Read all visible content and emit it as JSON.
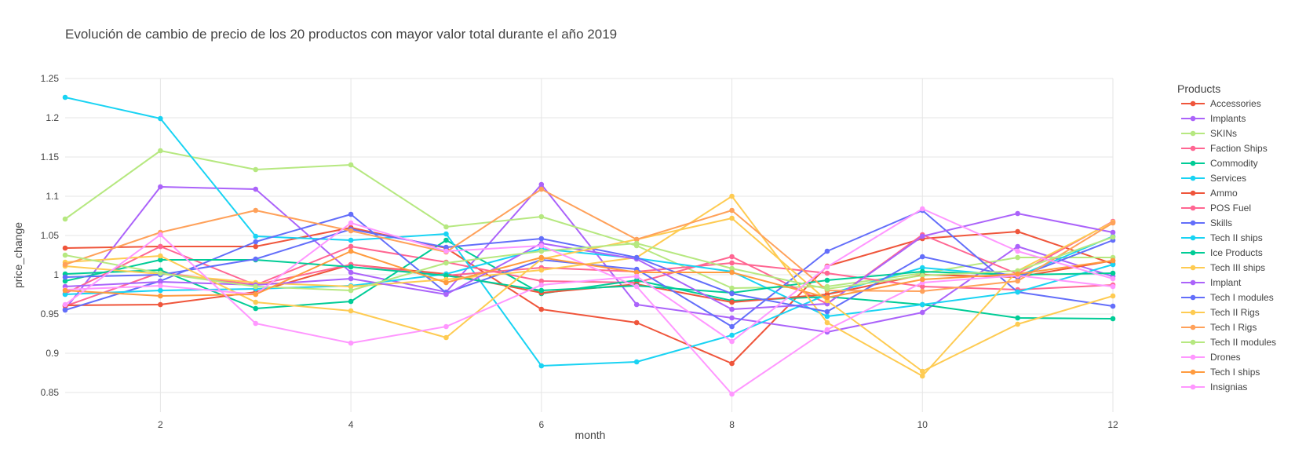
{
  "chart_data": {
    "type": "line",
    "title": "Evolución de cambio de precio de los 20 productos con mayor valor total durante el año 2019",
    "xlabel": "month",
    "ylabel": "price_change",
    "legend_title": "Products",
    "legend_position": "right",
    "grid": true,
    "xlim": [
      1,
      12
    ],
    "ylim": [
      0.825,
      1.25
    ],
    "x_ticks": [
      "2",
      "4",
      "6",
      "8",
      "10",
      "12"
    ],
    "x_tick_values": [
      2,
      4,
      6,
      8,
      10,
      12
    ],
    "y_ticks": [
      "0.85",
      "0.9",
      "0.95",
      "1",
      "1.05",
      "1.1",
      "1.15",
      "1.2",
      "1.25"
    ],
    "y_tick_values": [
      0.85,
      0.9,
      0.95,
      1.0,
      1.05,
      1.1,
      1.15,
      1.2,
      1.25
    ],
    "x": [
      1,
      2,
      3,
      4,
      5,
      6,
      7,
      8,
      9,
      10,
      11,
      12
    ],
    "series": [
      {
        "name": "Accessories",
        "color": "#EF553B",
        "values": [
          1.034,
          1.036,
          1.036,
          1.06,
          1.034,
          0.956,
          0.939,
          0.887,
          1.011,
          1.046,
          1.055,
          1.014
        ]
      },
      {
        "name": "Implants",
        "color": "#AB63FA",
        "values": [
          0.956,
          1.112,
          1.109,
          1.003,
          0.978,
          1.115,
          0.962,
          0.945,
          0.927,
          0.952,
          1.036,
          0.998
        ]
      },
      {
        "name": "SKINs",
        "color": "#B6E880",
        "values": [
          1.071,
          1.158,
          1.134,
          1.14,
          1.061,
          1.074,
          1.037,
          0.983,
          0.985,
          1.002,
          1.022,
          1.022
        ]
      },
      {
        "name": "Faction Ships",
        "color": "#FF6692",
        "values": [
          0.96,
          1.003,
          0.987,
          1.036,
          1.016,
          0.992,
          0.99,
          1.023,
          0.963,
          1.051,
          1.001,
          1.068
        ]
      },
      {
        "name": "Commodity",
        "color": "#00CC96",
        "values": [
          1.001,
          1.006,
          0.957,
          0.966,
          1.044,
          0.976,
          0.993,
          0.967,
          0.972,
          0.962,
          0.945,
          0.944
        ]
      },
      {
        "name": "Services",
        "color": "#19D3F3",
        "values": [
          1.226,
          1.199,
          1.049,
          1.044,
          1.052,
          0.884,
          0.889,
          0.923,
          0.975,
          1.009,
          0.998,
          1.049
        ]
      },
      {
        "name": "Ammo",
        "color": "#EF553B",
        "values": [
          0.961,
          0.962,
          0.978,
          1.013,
          1.001,
          0.977,
          0.988,
          0.965,
          0.975,
          1.0,
          0.997,
          1.018
        ]
      },
      {
        "name": "POS Fuel",
        "color": "#FF6692",
        "values": [
          0.976,
          1.036,
          0.987,
          1.013,
          0.999,
          1.009,
          1.004,
          1.015,
          1.002,
          0.985,
          0.981,
          0.987
        ]
      },
      {
        "name": "Skills",
        "color": "#636EFA",
        "values": [
          0.955,
          0.992,
          1.042,
          1.077,
          0.977,
          1.019,
          1.007,
          0.934,
          1.03,
          1.082,
          0.978,
          0.96
        ]
      },
      {
        "name": "Tech II ships",
        "color": "#19D3F3",
        "values": [
          0.975,
          0.98,
          0.982,
          0.986,
          1.001,
          1.033,
          1.021,
          1.004,
          0.947,
          0.962,
          0.978,
          1.013
        ]
      },
      {
        "name": "Ice Products",
        "color": "#00CC96",
        "values": [
          0.992,
          1.019,
          1.019,
          1.01,
          0.999,
          0.98,
          0.986,
          0.977,
          0.993,
          1.004,
          1.0,
          1.002
        ]
      },
      {
        "name": "Tech III ships",
        "color": "#FECB52",
        "values": [
          1.011,
          1.001,
          0.99,
          0.985,
          0.994,
          1.006,
          1.022,
          1.1,
          0.939,
          0.871,
          1.005,
          1.067
        ]
      },
      {
        "name": "Implant",
        "color": "#AB63FA",
        "values": [
          0.985,
          0.991,
          0.987,
          0.995,
          0.975,
          1.04,
          1.02,
          0.956,
          0.963,
          1.049,
          1.078,
          1.054
        ]
      },
      {
        "name": "Tech I modules",
        "color": "#636EFA",
        "values": [
          0.997,
          1.0,
          1.02,
          1.058,
          1.035,
          1.046,
          1.022,
          0.976,
          0.953,
          1.023,
          0.997,
          1.044
        ]
      },
      {
        "name": "Tech II Rigs",
        "color": "#FECB52",
        "values": [
          1.016,
          1.024,
          0.965,
          0.954,
          0.92,
          1.02,
          1.045,
          1.072,
          0.967,
          0.877,
          0.937,
          0.973
        ]
      },
      {
        "name": "Tech I Rigs",
        "color": "#FFA15A",
        "values": [
          1.013,
          1.054,
          1.082,
          1.056,
          1.029,
          1.109,
          1.045,
          1.082,
          0.98,
          0.979,
          0.992,
          1.066
        ]
      },
      {
        "name": "Tech II modules",
        "color": "#B6E880",
        "values": [
          1.025,
          1.002,
          0.985,
          0.98,
          1.015,
          1.03,
          1.04,
          1.008,
          0.982,
          0.999,
          1.005,
          1.048
        ]
      },
      {
        "name": "Drones",
        "color": "#FF97FF",
        "values": [
          0.981,
          0.986,
          0.975,
          1.066,
          1.03,
          1.037,
          0.985,
          0.848,
          0.93,
          0.99,
          0.999,
          0.985
        ]
      },
      {
        "name": "Tech I ships",
        "color": "#FF9B3F",
        "values": [
          0.98,
          0.973,
          0.975,
          1.03,
          0.99,
          1.022,
          1.003,
          1.003,
          0.971,
          0.994,
          1.001,
          1.018
        ]
      },
      {
        "name": "Insignias",
        "color": "#FF97FF",
        "values": [
          0.962,
          1.051,
          0.938,
          0.913,
          0.934,
          0.987,
          0.998,
          0.915,
          1.01,
          1.084,
          1.03,
          0.995
        ]
      }
    ]
  }
}
